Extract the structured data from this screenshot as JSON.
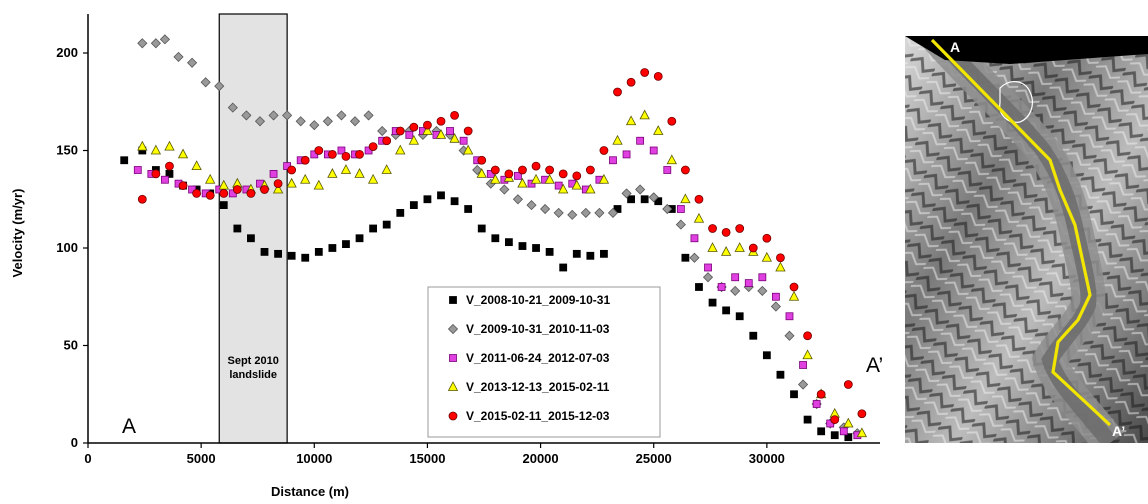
{
  "chart_data": {
    "type": "scatter",
    "title": "",
    "xlabel": "Distance (m)",
    "ylabel": "Velocity (m/yr)",
    "xlim": [
      0,
      35000
    ],
    "ylim": [
      0,
      220
    ],
    "xticks": [
      0,
      5000,
      10000,
      15000,
      20000,
      25000,
      30000
    ],
    "yticks": [
      0,
      50,
      100,
      150,
      200
    ],
    "grid": false,
    "legend_position": "lower-center",
    "highlight_band": {
      "x": [
        5800,
        8800
      ],
      "label_line1": "Sept 2010",
      "label_line2": "landslide"
    },
    "annotations": {
      "start": "A",
      "end": "A’"
    },
    "series": [
      {
        "name": "V_2008-10-21_2009-10-31",
        "marker": "square",
        "color": "#000000",
        "stroke": "#000000",
        "points": [
          [
            1600,
            145
          ],
          [
            2400,
            150
          ],
          [
            3000,
            140
          ],
          [
            3600,
            138
          ],
          [
            4200,
            132
          ],
          [
            4800,
            130
          ],
          [
            5400,
            128
          ],
          [
            6000,
            122
          ],
          [
            6600,
            110
          ],
          [
            7200,
            105
          ],
          [
            7800,
            98
          ],
          [
            8400,
            97
          ],
          [
            9000,
            96
          ],
          [
            9600,
            95
          ],
          [
            10200,
            98
          ],
          [
            10800,
            100
          ],
          [
            11400,
            102
          ],
          [
            12000,
            105
          ],
          [
            12600,
            110
          ],
          [
            13200,
            112
          ],
          [
            13800,
            118
          ],
          [
            14400,
            122
          ],
          [
            15000,
            125
          ],
          [
            15600,
            127
          ],
          [
            16200,
            124
          ],
          [
            16800,
            120
          ],
          [
            17400,
            110
          ],
          [
            18000,
            105
          ],
          [
            18600,
            103
          ],
          [
            19200,
            101
          ],
          [
            19800,
            100
          ],
          [
            20400,
            98
          ],
          [
            21000,
            90
          ],
          [
            21600,
            97
          ],
          [
            22200,
            96
          ],
          [
            22800,
            97
          ],
          [
            23400,
            120
          ],
          [
            24000,
            125
          ],
          [
            24600,
            125
          ],
          [
            25200,
            124
          ],
          [
            25800,
            120
          ],
          [
            26400,
            95
          ],
          [
            27000,
            80
          ],
          [
            27600,
            72
          ],
          [
            28200,
            68
          ],
          [
            28800,
            65
          ],
          [
            29400,
            55
          ],
          [
            30000,
            45
          ],
          [
            30600,
            35
          ],
          [
            31200,
            25
          ],
          [
            31800,
            12
          ],
          [
            32400,
            6
          ],
          [
            33000,
            4
          ],
          [
            33600,
            3
          ]
        ]
      },
      {
        "name": "V_2009-10-31_2010-11-03",
        "marker": "diamond",
        "color": "#999999",
        "stroke": "#555555",
        "points": [
          [
            2400,
            205
          ],
          [
            3000,
            205
          ],
          [
            3400,
            207
          ],
          [
            4000,
            198
          ],
          [
            4600,
            195
          ],
          [
            5200,
            185
          ],
          [
            5800,
            183
          ],
          [
            6400,
            172
          ],
          [
            7000,
            168
          ],
          [
            7600,
            165
          ],
          [
            8200,
            168
          ],
          [
            8800,
            168
          ],
          [
            9400,
            165
          ],
          [
            10000,
            163
          ],
          [
            10600,
            165
          ],
          [
            11200,
            168
          ],
          [
            11800,
            165
          ],
          [
            12400,
            168
          ],
          [
            13000,
            160
          ],
          [
            13600,
            158
          ],
          [
            14200,
            160
          ],
          [
            14800,
            158
          ],
          [
            15400,
            160
          ],
          [
            16000,
            158
          ],
          [
            16600,
            150
          ],
          [
            17200,
            140
          ],
          [
            17800,
            133
          ],
          [
            18400,
            130
          ],
          [
            19000,
            125
          ],
          [
            19600,
            122
          ],
          [
            20200,
            120
          ],
          [
            20800,
            118
          ],
          [
            21400,
            117
          ],
          [
            22000,
            118
          ],
          [
            22600,
            118
          ],
          [
            23200,
            118
          ],
          [
            23800,
            128
          ],
          [
            24400,
            130
          ],
          [
            25000,
            126
          ],
          [
            25600,
            120
          ],
          [
            26200,
            112
          ],
          [
            26800,
            95
          ],
          [
            27400,
            85
          ],
          [
            28000,
            80
          ],
          [
            28600,
            78
          ],
          [
            29200,
            80
          ],
          [
            29800,
            78
          ],
          [
            30400,
            70
          ],
          [
            31000,
            55
          ],
          [
            31600,
            30
          ],
          [
            32200,
            20
          ],
          [
            32800,
            10
          ],
          [
            33400,
            8
          ],
          [
            34000,
            5
          ]
        ]
      },
      {
        "name": "V_2011-06-24_2012-07-03",
        "marker": "square",
        "color": "#e040e0",
        "stroke": "#7a007a",
        "points": [
          [
            2200,
            140
          ],
          [
            2800,
            138
          ],
          [
            3400,
            135
          ],
          [
            4000,
            133
          ],
          [
            4600,
            130
          ],
          [
            5200,
            128
          ],
          [
            5800,
            130
          ],
          [
            6400,
            128
          ],
          [
            7000,
            130
          ],
          [
            7600,
            133
          ],
          [
            8200,
            138
          ],
          [
            8800,
            142
          ],
          [
            9400,
            145
          ],
          [
            10000,
            148
          ],
          [
            10600,
            148
          ],
          [
            11200,
            150
          ],
          [
            11800,
            148
          ],
          [
            12400,
            150
          ],
          [
            13000,
            155
          ],
          [
            13600,
            160
          ],
          [
            14200,
            158
          ],
          [
            14800,
            160
          ],
          [
            15400,
            158
          ],
          [
            16000,
            160
          ],
          [
            16600,
            155
          ],
          [
            17200,
            145
          ],
          [
            17800,
            138
          ],
          [
            18400,
            135
          ],
          [
            19000,
            137
          ],
          [
            19600,
            133
          ],
          [
            20200,
            135
          ],
          [
            20800,
            132
          ],
          [
            21400,
            133
          ],
          [
            22000,
            130
          ],
          [
            22600,
            135
          ],
          [
            23200,
            145
          ],
          [
            23800,
            148
          ],
          [
            24400,
            155
          ],
          [
            25000,
            150
          ],
          [
            25600,
            140
          ],
          [
            26200,
            120
          ],
          [
            26800,
            105
          ],
          [
            27400,
            90
          ],
          [
            28000,
            80
          ],
          [
            28600,
            85
          ],
          [
            29200,
            82
          ],
          [
            29800,
            85
          ],
          [
            30400,
            75
          ],
          [
            31000,
            65
          ],
          [
            31600,
            40
          ],
          [
            32200,
            20
          ],
          [
            32800,
            10
          ],
          [
            33400,
            6
          ],
          [
            34000,
            4
          ]
        ]
      },
      {
        "name": "V_2013-12-13_2015-02-11",
        "marker": "triangle",
        "color": "#ffff00",
        "stroke": "#555500",
        "points": [
          [
            2400,
            152
          ],
          [
            3000,
            150
          ],
          [
            3600,
            152
          ],
          [
            4200,
            148
          ],
          [
            4800,
            142
          ],
          [
            5400,
            135
          ],
          [
            6000,
            132
          ],
          [
            6600,
            133
          ],
          [
            7200,
            130
          ],
          [
            7800,
            132
          ],
          [
            8400,
            130
          ],
          [
            9000,
            133
          ],
          [
            9600,
            135
          ],
          [
            10200,
            132
          ],
          [
            10800,
            138
          ],
          [
            11400,
            140
          ],
          [
            12000,
            138
          ],
          [
            12600,
            135
          ],
          [
            13200,
            140
          ],
          [
            13800,
            150
          ],
          [
            14400,
            155
          ],
          [
            15000,
            160
          ],
          [
            15600,
            158
          ],
          [
            16200,
            156
          ],
          [
            16800,
            150
          ],
          [
            17400,
            138
          ],
          [
            18000,
            135
          ],
          [
            18600,
            136
          ],
          [
            19200,
            133
          ],
          [
            19800,
            135
          ],
          [
            20400,
            135
          ],
          [
            21000,
            130
          ],
          [
            21600,
            132
          ],
          [
            22200,
            130
          ],
          [
            22800,
            135
          ],
          [
            23400,
            155
          ],
          [
            24000,
            165
          ],
          [
            24600,
            168
          ],
          [
            25200,
            160
          ],
          [
            25800,
            145
          ],
          [
            26400,
            125
          ],
          [
            27000,
            115
          ],
          [
            27600,
            100
          ],
          [
            28200,
            98
          ],
          [
            28800,
            100
          ],
          [
            29400,
            98
          ],
          [
            30000,
            95
          ],
          [
            30600,
            90
          ],
          [
            31200,
            75
          ],
          [
            31800,
            45
          ],
          [
            32400,
            25
          ],
          [
            33000,
            15
          ],
          [
            33600,
            10
          ],
          [
            34200,
            5
          ]
        ]
      },
      {
        "name": "V_2015-02-11_2015-12-03",
        "marker": "circle",
        "color": "#ff0000",
        "stroke": "#700000",
        "points": [
          [
            2400,
            125
          ],
          [
            3000,
            138
          ],
          [
            3600,
            142
          ],
          [
            4200,
            132
          ],
          [
            4800,
            128
          ],
          [
            5400,
            127
          ],
          [
            6000,
            128
          ],
          [
            6600,
            130
          ],
          [
            7200,
            128
          ],
          [
            7800,
            130
          ],
          [
            8400,
            133
          ],
          [
            9000,
            140
          ],
          [
            9600,
            145
          ],
          [
            10200,
            150
          ],
          [
            10800,
            148
          ],
          [
            11400,
            147
          ],
          [
            12000,
            148
          ],
          [
            12600,
            152
          ],
          [
            13200,
            155
          ],
          [
            13800,
            160
          ],
          [
            14400,
            162
          ],
          [
            15000,
            163
          ],
          [
            15600,
            165
          ],
          [
            16200,
            168
          ],
          [
            16800,
            160
          ],
          [
            17400,
            145
          ],
          [
            18000,
            140
          ],
          [
            18600,
            138
          ],
          [
            19200,
            140
          ],
          [
            19800,
            142
          ],
          [
            20400,
            140
          ],
          [
            21000,
            138
          ],
          [
            21600,
            137
          ],
          [
            22200,
            140
          ],
          [
            22800,
            150
          ],
          [
            23400,
            180
          ],
          [
            24000,
            185
          ],
          [
            24600,
            190
          ],
          [
            25200,
            188
          ],
          [
            25800,
            165
          ],
          [
            26400,
            140
          ],
          [
            27000,
            125
          ],
          [
            27600,
            110
          ],
          [
            28200,
            108
          ],
          [
            28800,
            110
          ],
          [
            29400,
            100
          ],
          [
            30000,
            105
          ],
          [
            30600,
            95
          ],
          [
            31200,
            80
          ],
          [
            31800,
            55
          ],
          [
            32400,
            25
          ],
          [
            33000,
            12
          ],
          [
            33600,
            30
          ],
          [
            34200,
            15
          ]
        ]
      }
    ]
  },
  "map": {
    "label_top": "A",
    "label_bottom": "A’",
    "line_color": "#f2e600"
  }
}
